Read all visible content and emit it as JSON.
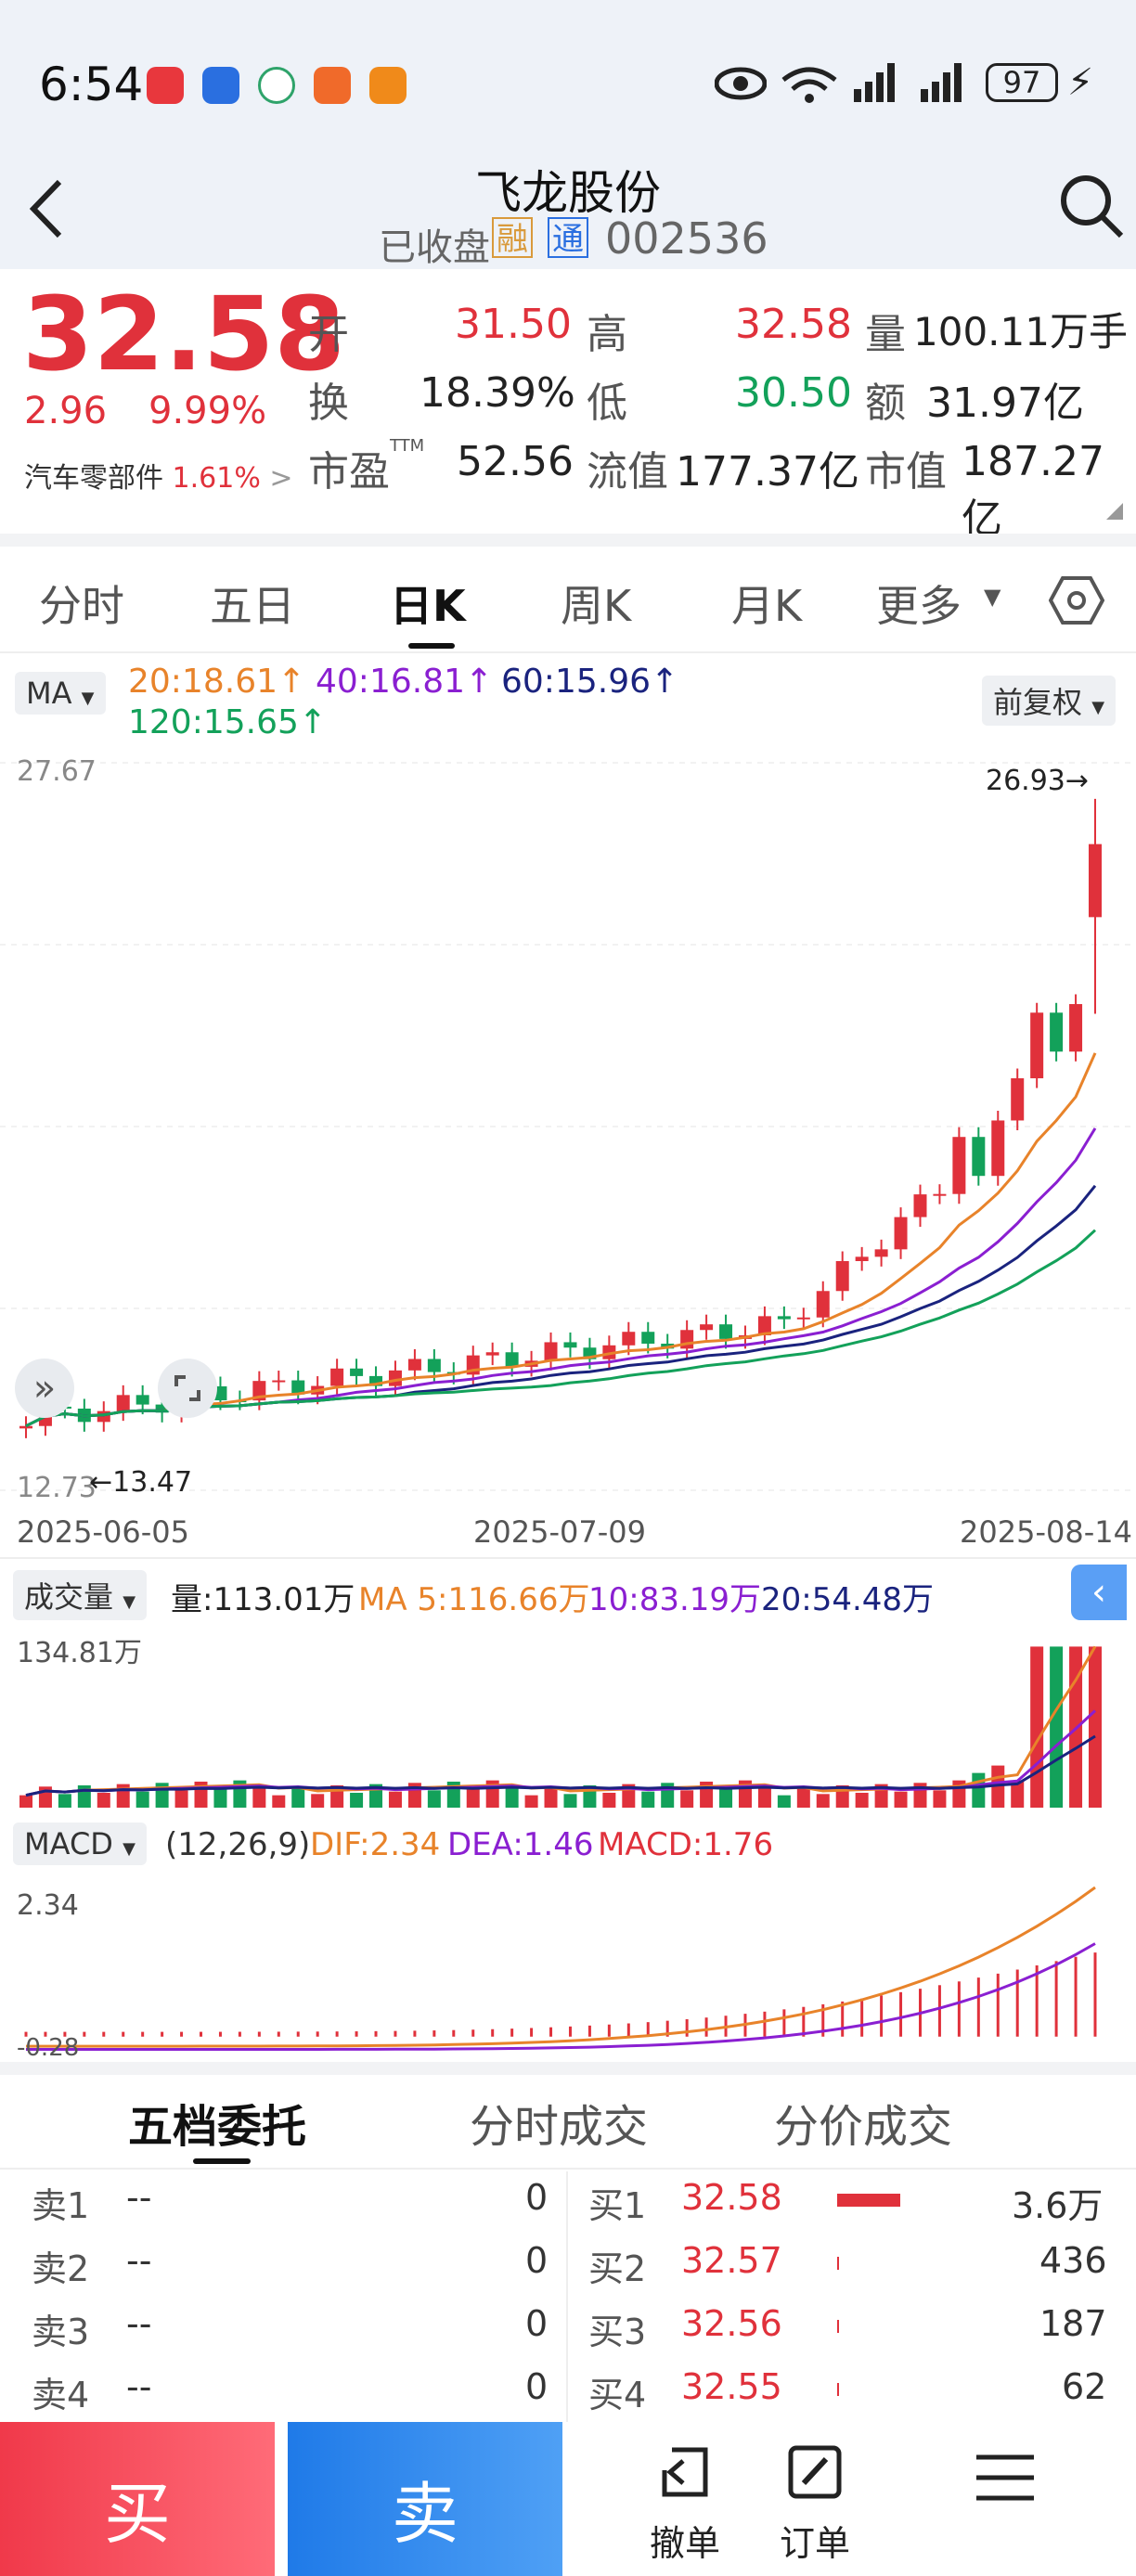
{
  "status_bar": {
    "time": "6:54",
    "battery": "97"
  },
  "header": {
    "stock_name": "飞龙股份",
    "market_state": "已收盘",
    "badge_rong": "融",
    "badge_tong": "通",
    "code": "002536"
  },
  "quote": {
    "price": "32.58",
    "change": "2.96",
    "change_pct": "9.99%",
    "sector": "汽车零部件",
    "sector_pct": "1.61%",
    "open_label": "开",
    "open": "31.50",
    "high_label": "高",
    "high": "32.58",
    "volume_label": "量",
    "volume": "100.11万手",
    "turnover_label": "换",
    "turnover": "18.39%",
    "low_label": "低",
    "low": "30.50",
    "amount_label": "额",
    "amount": "31.97亿",
    "pe_label": "市盈",
    "pe_sup": "TTM",
    "pe": "52.56",
    "float_label": "流值",
    "float_cap": "177.37亿",
    "mcap_label": "市值",
    "mcap": "187.27亿"
  },
  "tabs": [
    "分时",
    "五日",
    "日K",
    "周K",
    "月K",
    "更多"
  ],
  "ma_bar": {
    "select": "MA",
    "ma20": "20:18.61",
    "ma40": "40:16.81",
    "ma60": "60:15.96",
    "ma120": "120:15.65",
    "adjust": "前复权"
  },
  "kline": {
    "y_top": "27.67",
    "y_bottom": "12.73",
    "max_label": "26.93",
    "min_label": "13.47",
    "dates": [
      "2025-06-05",
      "2025-07-09",
      "2025-08-14"
    ]
  },
  "volume_bar": {
    "select": "成交量",
    "volume": "量:113.01万",
    "ma5": "MA 5:116.66万",
    "ma10": "10:83.19万",
    "ma20": "20:54.48万",
    "y_top": "134.81万"
  },
  "macd_bar": {
    "select": "MACD",
    "params": "(12,26,9)",
    "dif": "DIF:2.34",
    "dea": "DEA:1.46",
    "macd": "MACD:1.76",
    "y_top": "2.34",
    "y_bottom": "-0.28"
  },
  "order_tabs": [
    "五档委托",
    "分时成交",
    "分价成交"
  ],
  "sell_orders": [
    {
      "label": "卖1",
      "price": "--",
      "qty": "0"
    },
    {
      "label": "卖2",
      "price": "--",
      "qty": "0"
    },
    {
      "label": "卖3",
      "price": "--",
      "qty": "0"
    },
    {
      "label": "卖4",
      "price": "--",
      "qty": "0"
    }
  ],
  "buy_orders": [
    {
      "label": "买1",
      "price": "32.58",
      "qty": "3.6万"
    },
    {
      "label": "买2",
      "price": "32.57",
      "qty": "436"
    },
    {
      "label": "买3",
      "price": "32.56",
      "qty": "187"
    },
    {
      "label": "买4",
      "price": "32.55",
      "qty": "62"
    }
  ],
  "bottom": {
    "buy": "买",
    "sell": "卖",
    "cancel": "撤单",
    "order": "订单"
  },
  "colors": {
    "up": "#e0313b",
    "down": "#13a15a",
    "ma20": "#e8832a",
    "ma40": "#8a1fd1",
    "ma60": "#1a237e",
    "ma120": "#13a15a"
  }
}
